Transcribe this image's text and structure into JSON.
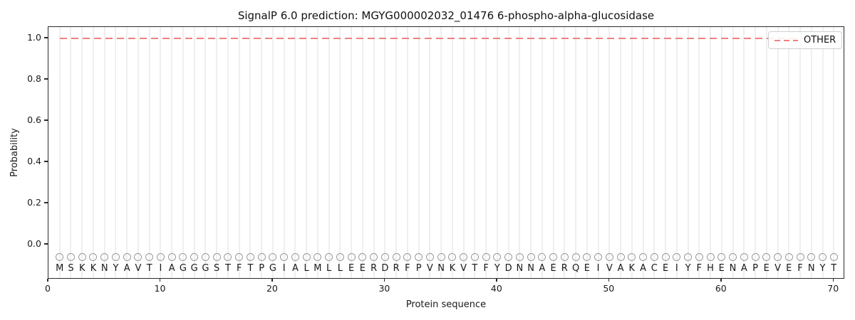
{
  "title": "SignalP 6.0 prediction: MGYG000002032_01476 6-phospho-alpha-glucosidase",
  "chart_data": {
    "type": "line",
    "title": "SignalP 6.0 prediction: MGYG000002032_01476 6-phospho-alpha-glucosidase",
    "xlabel": "Protein sequence",
    "ylabel": "Probability",
    "xlim": [
      0,
      71
    ],
    "ylim_visible": [
      -0.17,
      1.06
    ],
    "xticks": [
      "0",
      "10",
      "20",
      "30",
      "40",
      "50",
      "60",
      "70"
    ],
    "yticks": [
      "0.0",
      "0.2",
      "0.4",
      "0.6",
      "0.8",
      "1.0"
    ],
    "grid": "light vertical gridline at every residue position",
    "legend": {
      "position": "upper-right",
      "entries": [
        {
          "label": "OTHER",
          "color": "#f08080",
          "linestyle": "dashed"
        }
      ]
    },
    "series": [
      {
        "name": "OTHER",
        "color": "#f08080",
        "linestyle": "dashed",
        "constant_value": 1.0,
        "x": [
          1,
          2,
          3,
          4,
          5,
          6,
          7,
          8,
          9,
          10,
          11,
          12,
          13,
          14,
          15,
          16,
          17,
          18,
          19,
          20,
          21,
          22,
          23,
          24,
          25,
          26,
          27,
          28,
          29,
          30,
          31,
          32,
          33,
          34,
          35,
          36,
          37,
          38,
          39,
          40,
          41,
          42,
          43,
          44,
          45,
          46,
          47,
          48,
          49,
          50,
          51,
          52,
          53,
          54,
          55,
          56,
          57,
          58,
          59,
          60,
          61,
          62,
          63,
          64,
          65,
          66,
          67,
          68,
          69,
          70
        ],
        "values": [
          1.0,
          1.0,
          1.0,
          1.0,
          1.0,
          1.0,
          1.0,
          1.0,
          1.0,
          1.0,
          1.0,
          1.0,
          1.0,
          1.0,
          1.0,
          1.0,
          1.0,
          1.0,
          1.0,
          1.0,
          1.0,
          1.0,
          1.0,
          1.0,
          1.0,
          1.0,
          1.0,
          1.0,
          1.0,
          1.0,
          1.0,
          1.0,
          1.0,
          1.0,
          1.0,
          1.0,
          1.0,
          1.0,
          1.0,
          1.0,
          1.0,
          1.0,
          1.0,
          1.0,
          1.0,
          1.0,
          1.0,
          1.0,
          1.0,
          1.0,
          1.0,
          1.0,
          1.0,
          1.0,
          1.0,
          1.0,
          1.0,
          1.0,
          1.0,
          1.0,
          1.0,
          1.0,
          1.0,
          1.0,
          1.0,
          1.0,
          1.0,
          1.0,
          1.0,
          1.0
        ]
      }
    ],
    "sequence": {
      "residues": "MSKKNYAVTIAGGGSTFTPGIALMLLEERDRFPVNKVTFYDNNAERQEIVAKACEIYFHENAPEVEFNYT",
      "position_start": 1,
      "position_end": 70,
      "marker": {
        "glyph": "open-circle",
        "color": "#9a9a9a",
        "y": -0.06
      }
    },
    "colors": {
      "other_line": "#f08080",
      "gridline": "#efefef",
      "marker_outline": "#9a9a9a",
      "spine": "#2b2b2b",
      "background": "#ffffff"
    }
  }
}
